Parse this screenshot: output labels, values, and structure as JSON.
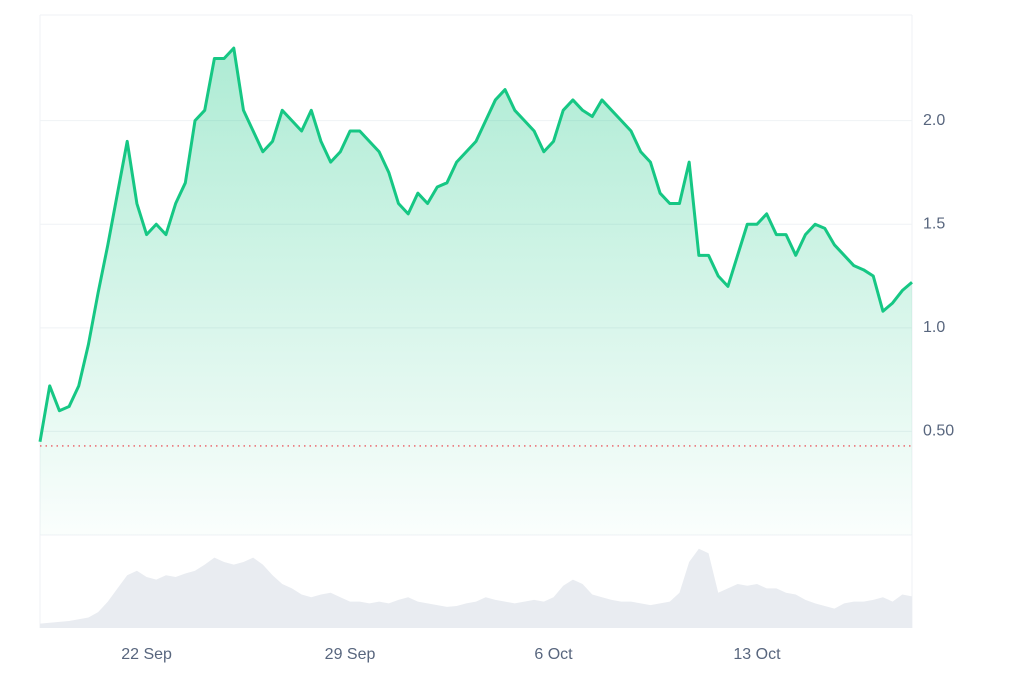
{
  "chart_data": {
    "type": "line",
    "categories": [
      null,
      null,
      null,
      null,
      null,
      null,
      null,
      null,
      null,
      null,
      null,
      "22 Sep",
      null,
      null,
      null,
      null,
      null,
      null,
      null,
      null,
      null,
      null,
      null,
      null,
      null,
      null,
      null,
      null,
      null,
      null,
      null,
      null,
      "29 Sep",
      null,
      null,
      null,
      null,
      null,
      null,
      null,
      null,
      null,
      null,
      null,
      null,
      null,
      null,
      null,
      null,
      null,
      null,
      null,
      null,
      "6 Oct",
      null,
      null,
      null,
      null,
      null,
      null,
      null,
      null,
      null,
      null,
      null,
      null,
      null,
      null,
      null,
      null,
      null,
      null,
      null,
      null,
      "13 Oct",
      null,
      null,
      null,
      null,
      null,
      null,
      null,
      null,
      null,
      null,
      null,
      null,
      null,
      null,
      null,
      null
    ],
    "series": [
      {
        "color": "#16c784",
        "values": [
          0.45,
          0.72,
          0.6,
          0.62,
          0.72,
          0.92,
          1.17,
          1.4,
          1.65,
          1.9,
          1.6,
          1.45,
          1.5,
          1.45,
          1.6,
          1.7,
          2.0,
          2.05,
          2.3,
          2.3,
          2.35,
          2.05,
          1.95,
          1.85,
          1.9,
          2.05,
          2.0,
          1.95,
          2.05,
          1.9,
          1.8,
          1.85,
          1.95,
          1.95,
          1.9,
          1.85,
          1.75,
          1.6,
          1.55,
          1.65,
          1.6,
          1.68,
          1.7,
          1.8,
          1.85,
          1.9,
          2.0,
          2.1,
          2.15,
          2.05,
          2.0,
          1.95,
          1.85,
          1.9,
          2.05,
          2.1,
          2.05,
          2.02,
          2.1,
          2.05,
          2.0,
          1.95,
          1.85,
          1.8,
          1.65,
          1.6,
          1.6,
          1.8,
          1.35,
          1.35,
          1.25,
          1.2,
          1.35,
          1.5,
          1.5,
          1.55,
          1.45,
          1.45,
          1.35,
          1.45,
          1.5,
          1.48,
          1.4,
          1.35,
          1.3,
          1.28,
          1.25,
          1.08,
          1.12,
          1.18,
          1.22
        ]
      },
      {
        "color": "#e9ecf1",
        "panel": "volume",
        "values": [
          5,
          6,
          7,
          8,
          10,
          12,
          18,
          30,
          45,
          60,
          65,
          58,
          55,
          60,
          58,
          62,
          65,
          72,
          80,
          75,
          72,
          75,
          80,
          72,
          60,
          50,
          45,
          38,
          35,
          38,
          40,
          35,
          30,
          30,
          28,
          30,
          28,
          32,
          35,
          30,
          28,
          26,
          24,
          25,
          28,
          30,
          35,
          32,
          30,
          28,
          30,
          32,
          30,
          35,
          48,
          55,
          50,
          38,
          35,
          32,
          30,
          30,
          28,
          26,
          28,
          30,
          40,
          75,
          90,
          85,
          40,
          45,
          50,
          48,
          50,
          45,
          45,
          40,
          38,
          32,
          28,
          25,
          22,
          28,
          30,
          30,
          32,
          35,
          30,
          38,
          36
        ]
      }
    ],
    "ylim": [
      0,
      2.51
    ],
    "yticks": [
      {
        "value": 0.5,
        "label": "0.50"
      },
      {
        "value": 1,
        "label": "1.0"
      },
      {
        "value": 1.5,
        "label": "1.5"
      },
      {
        "value": 2,
        "label": "2.0"
      }
    ],
    "volume_lim": [
      0,
      100
    ],
    "baseline": 0.43,
    "baseline_color": "#ea3943",
    "grid": true
  }
}
